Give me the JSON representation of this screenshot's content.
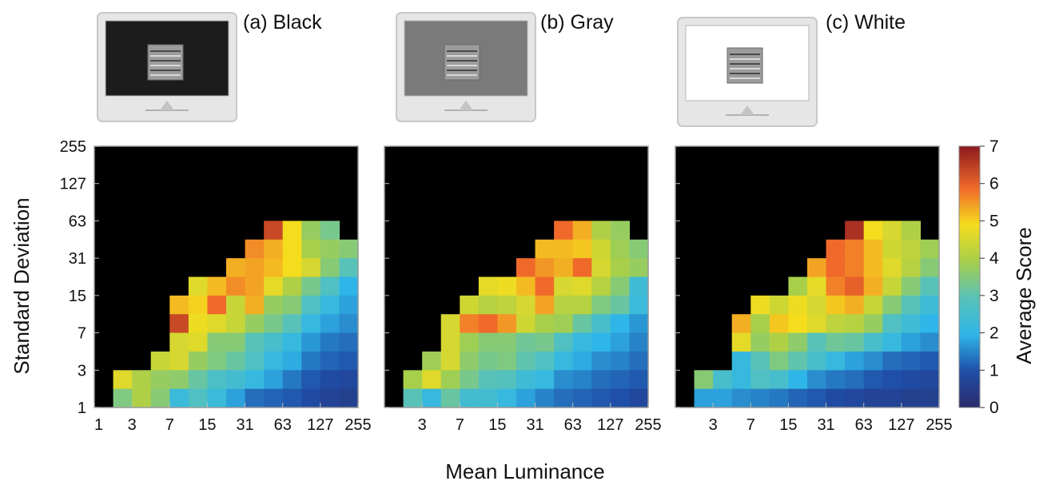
{
  "figure": {
    "xlabel": "Mean Luminance",
    "ylabel": "Standard Deviation",
    "colorbar": {
      "label": "Average Score",
      "ticks": [
        "0",
        "1",
        "2",
        "3",
        "4",
        "5",
        "6",
        "7"
      ],
      "range": [
        0,
        7
      ],
      "colormap": "jet"
    },
    "background_colors": {
      "(a) Black": "#1c1c1c",
      "(b) Gray": "#7a7a7a",
      "(c) White": "#ffffff"
    },
    "no_data_color": "#000000"
  },
  "chart_data": [
    {
      "type": "heatmap",
      "title": "(a) Black",
      "x_axis_scale": "log",
      "y_axis_scale": "log",
      "xticks": [
        "1",
        "3",
        "7",
        "15",
        "31",
        "63",
        "127",
        "255"
      ],
      "yticks": [
        "1",
        "3",
        "7",
        "15",
        "31",
        "63",
        "127",
        "255"
      ],
      "x_bins": 14,
      "y_bins": 14,
      "rows_top_to_bottom": [
        [
          null,
          null,
          null,
          null,
          null,
          null,
          null,
          null,
          null,
          null,
          null,
          null,
          null,
          null
        ],
        [
          null,
          null,
          null,
          null,
          null,
          null,
          null,
          null,
          null,
          null,
          null,
          null,
          null,
          null
        ],
        [
          null,
          null,
          null,
          null,
          null,
          null,
          null,
          null,
          null,
          null,
          null,
          null,
          null,
          null
        ],
        [
          null,
          null,
          null,
          null,
          null,
          null,
          null,
          null,
          null,
          null,
          null,
          null,
          null,
          null
        ],
        [
          null,
          null,
          null,
          null,
          null,
          null,
          null,
          null,
          null,
          6.4,
          5.0,
          3.8,
          3.4,
          null
        ],
        [
          null,
          null,
          null,
          null,
          null,
          null,
          null,
          null,
          5.7,
          5.4,
          5.0,
          4.0,
          3.8,
          3.6
        ],
        [
          null,
          null,
          null,
          null,
          null,
          null,
          null,
          5.4,
          5.5,
          5.3,
          5.0,
          4.6,
          3.6,
          3.0
        ],
        [
          null,
          null,
          null,
          null,
          null,
          4.7,
          5.3,
          5.7,
          5.5,
          4.8,
          4.1,
          3.4,
          2.8,
          2.0
        ],
        [
          null,
          null,
          null,
          null,
          5.3,
          5.1,
          6.0,
          4.4,
          5.4,
          3.8,
          3.6,
          2.8,
          2.2,
          1.8
        ],
        [
          null,
          null,
          null,
          null,
          6.4,
          4.9,
          4.7,
          4.4,
          3.8,
          3.4,
          3.0,
          2.2,
          1.8,
          1.6
        ],
        [
          null,
          null,
          null,
          null,
          4.6,
          4.7,
          3.6,
          3.6,
          3.0,
          2.6,
          2.2,
          1.7,
          1.4,
          1.3
        ],
        [
          null,
          null,
          null,
          4.4,
          4.6,
          3.8,
          3.5,
          3.2,
          2.8,
          2.2,
          1.9,
          1.4,
          1.2,
          1.1
        ],
        [
          null,
          4.7,
          4.1,
          3.8,
          3.7,
          3.2,
          2.7,
          2.5,
          2.2,
          1.8,
          1.4,
          1.1,
          0.9,
          0.8
        ],
        [
          null,
          3.5,
          4.1,
          3.6,
          2.3,
          2.8,
          2.3,
          1.8,
          1.3,
          1.2,
          1.1,
          0.9,
          0.7,
          0.6
        ]
      ]
    },
    {
      "type": "heatmap",
      "title": "(b) Gray",
      "x_axis_scale": "log",
      "y_axis_scale": "log",
      "xticks": [
        "3",
        "7",
        "15",
        "31",
        "63",
        "127",
        "255"
      ],
      "yticks": [],
      "x_bins": 14,
      "y_bins": 14,
      "rows_top_to_bottom": [
        [
          null,
          null,
          null,
          null,
          null,
          null,
          null,
          null,
          null,
          null,
          null,
          null,
          null,
          null
        ],
        [
          null,
          null,
          null,
          null,
          null,
          null,
          null,
          null,
          null,
          null,
          null,
          null,
          null,
          null
        ],
        [
          null,
          null,
          null,
          null,
          null,
          null,
          null,
          null,
          null,
          null,
          null,
          null,
          null,
          null
        ],
        [
          null,
          null,
          null,
          null,
          null,
          null,
          null,
          null,
          null,
          null,
          null,
          null,
          null,
          null
        ],
        [
          null,
          null,
          null,
          null,
          null,
          null,
          null,
          null,
          null,
          6.0,
          5.4,
          4.1,
          3.8,
          null
        ],
        [
          null,
          null,
          null,
          null,
          null,
          null,
          null,
          null,
          5.3,
          5.3,
          5.2,
          4.5,
          3.9,
          3.6
        ],
        [
          null,
          null,
          null,
          null,
          null,
          null,
          null,
          6.0,
          5.6,
          5.4,
          6.0,
          4.6,
          4.0,
          3.8
        ],
        [
          null,
          null,
          null,
          null,
          null,
          4.8,
          4.9,
          5.3,
          6.0,
          4.6,
          4.7,
          4.2,
          3.6,
          2.4
        ],
        [
          null,
          null,
          null,
          null,
          4.5,
          4.2,
          4.3,
          4.6,
          5.5,
          4.2,
          4.2,
          3.5,
          3.2,
          2.3
        ],
        [
          null,
          null,
          null,
          4.6,
          5.8,
          6.0,
          5.6,
          4.5,
          4.0,
          3.9,
          3.2,
          2.6,
          2.0,
          1.7
        ],
        [
          null,
          null,
          null,
          4.6,
          3.9,
          3.6,
          3.6,
          3.3,
          3.4,
          2.8,
          2.2,
          2.0,
          1.8,
          1.5
        ],
        [
          null,
          null,
          3.9,
          4.6,
          3.7,
          3.4,
          3.5,
          3.1,
          2.8,
          2.2,
          1.9,
          1.6,
          1.5,
          1.3
        ],
        [
          null,
          4.0,
          4.7,
          3.9,
          3.4,
          3.0,
          2.9,
          2.4,
          2.2,
          1.6,
          1.5,
          1.3,
          1.2,
          1.1
        ],
        [
          null,
          3.0,
          2.2,
          3.2,
          2.5,
          2.5,
          2.2,
          1.8,
          1.5,
          1.3,
          1.2,
          1.1,
          1.0,
          0.8
        ]
      ]
    },
    {
      "type": "heatmap",
      "title": "(c) White",
      "x_axis_scale": "log",
      "y_axis_scale": "log",
      "xticks": [
        "3",
        "7",
        "15",
        "31",
        "63",
        "127",
        "255"
      ],
      "yticks": [],
      "x_bins": 14,
      "y_bins": 14,
      "rows_top_to_bottom": [
        [
          null,
          null,
          null,
          null,
          null,
          null,
          null,
          null,
          null,
          null,
          null,
          null,
          null,
          null
        ],
        [
          null,
          null,
          null,
          null,
          null,
          null,
          null,
          null,
          null,
          null,
          null,
          null,
          null,
          null
        ],
        [
          null,
          null,
          null,
          null,
          null,
          null,
          null,
          null,
          null,
          null,
          null,
          null,
          null,
          null
        ],
        [
          null,
          null,
          null,
          null,
          null,
          null,
          null,
          null,
          null,
          null,
          null,
          null,
          null,
          null
        ],
        [
          null,
          null,
          null,
          null,
          null,
          null,
          null,
          null,
          null,
          6.7,
          5.0,
          4.6,
          4.1,
          null
        ],
        [
          null,
          null,
          null,
          null,
          null,
          null,
          null,
          null,
          6.0,
          5.8,
          5.3,
          4.5,
          4.3,
          3.9
        ],
        [
          null,
          null,
          null,
          null,
          null,
          null,
          null,
          5.5,
          6.0,
          5.8,
          5.3,
          4.7,
          4.2,
          3.6
        ],
        [
          null,
          null,
          null,
          null,
          null,
          null,
          4.0,
          4.8,
          5.8,
          6.1,
          5.4,
          4.4,
          3.6,
          3.0
        ],
        [
          null,
          null,
          null,
          null,
          4.9,
          4.5,
          4.9,
          4.6,
          5.2,
          5.4,
          4.4,
          3.6,
          3.0,
          2.4
        ],
        [
          null,
          null,
          null,
          5.4,
          4.0,
          5.2,
          5.0,
          4.7,
          4.3,
          4.2,
          3.8,
          2.8,
          2.4,
          2.0
        ],
        [
          null,
          null,
          null,
          4.8,
          3.8,
          4.1,
          3.7,
          3.0,
          3.3,
          3.2,
          2.6,
          2.2,
          1.8,
          1.6
        ],
        [
          null,
          null,
          null,
          2.2,
          3.0,
          3.5,
          3.1,
          2.6,
          2.2,
          1.8,
          1.6,
          1.3,
          1.2,
          1.1
        ],
        [
          null,
          3.6,
          2.6,
          2.2,
          2.8,
          2.6,
          2.0,
          1.6,
          1.4,
          1.3,
          1.1,
          1.0,
          0.9,
          0.8
        ],
        [
          null,
          1.8,
          1.8,
          1.6,
          1.5,
          1.4,
          1.2,
          1.1,
          0.9,
          0.8,
          0.7,
          0.7,
          0.6,
          0.6
        ]
      ]
    }
  ]
}
